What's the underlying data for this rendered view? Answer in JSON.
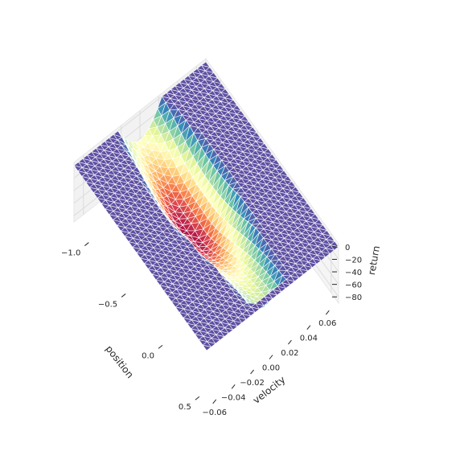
{
  "chart_data": {
    "type": "surface3d",
    "title": "",
    "xlabel": "position",
    "ylabel": "velocity",
    "zlabel": "return",
    "xlim": [
      -1.2,
      0.6
    ],
    "ylim": [
      -0.07,
      0.07
    ],
    "zlim": [
      -90,
      5
    ],
    "x_ticks": [
      -1.0,
      -0.5,
      0.0,
      0.5
    ],
    "x_tick_labels": [
      "−1.0",
      "−0.5",
      "0.0",
      "0.5"
    ],
    "y_ticks": [
      -0.06,
      -0.04,
      -0.02,
      0.0,
      0.02,
      0.04,
      0.06
    ],
    "y_tick_labels": [
      "−0.06",
      "−0.04",
      "−0.02",
      "0.00",
      "0.02",
      "0.04",
      "0.06"
    ],
    "z_ticks": [
      0,
      -20,
      -40,
      -60,
      -80
    ],
    "z_tick_labels": [
      "0",
      "−20",
      "−40",
      "−60",
      "−80"
    ],
    "colormap": "Spectral",
    "edge_color": "#ffffff",
    "pane_color": "#f2f2f2",
    "grid": true,
    "surface_description_values": {
      "goal_region_position_min": 0.5,
      "plateau_return": 0,
      "min_return": -85
    }
  }
}
